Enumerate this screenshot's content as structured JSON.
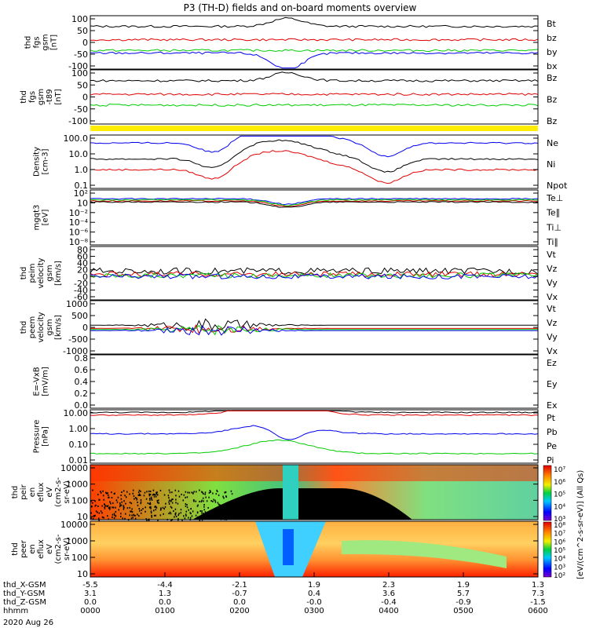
{
  "chart_data": {
    "type": "line",
    "title": "P3 (TH-D) fields and on-board moments overview",
    "date": "2020 Aug 26",
    "panels": [
      {
        "id": "fgs_gsm",
        "ylabel": [
          "thd",
          "fgs",
          "gsm",
          "[nT]"
        ],
        "yticks": [
          "100",
          "50",
          "0",
          "-50",
          "-100"
        ],
        "ylim": [
          -100,
          100
        ],
        "legend": [
          {
            "label": "Bt",
            "color": "#000000"
          },
          {
            "label": "bz",
            "color": "#e00000"
          },
          {
            "label": "by",
            "color": "#00cc00"
          },
          {
            "label": "bx",
            "color": "#0000ee"
          }
        ]
      },
      {
        "id": "fgs_gsm_t89",
        "ylabel": [
          "thd",
          "fgs",
          "gsm",
          "-t89",
          "[nT]"
        ],
        "yticks": [
          "100",
          "50",
          "0",
          "-50",
          "-100"
        ],
        "ylim": [
          -100,
          100
        ],
        "legend": [
          {
            "label": "Bz",
            "color": "#000000"
          },
          {
            "label": "Bz",
            "color": "#e00000"
          },
          {
            "label": "Bz",
            "color": "#00cc00"
          }
        ]
      },
      {
        "id": "density",
        "ylabel": [
          "Density",
          "[cm-3]"
        ],
        "yticks": [
          "100.0",
          "10.0",
          "1.0",
          "0.1"
        ],
        "scale": "log",
        "legend": [
          {
            "label": "Ne",
            "color": "#e00000"
          },
          {
            "label": "Ni",
            "color": "#000000"
          },
          {
            "label": "Npot",
            "color": "#0000ee"
          }
        ]
      },
      {
        "id": "temperature",
        "ylabel": [
          "mgqt3",
          "[eV]"
        ],
        "yticks": [
          "10²",
          "10",
          "10⁻²",
          "10⁻⁴",
          "10⁻⁶",
          "10⁻⁸"
        ],
        "scale": "log",
        "legend": [
          {
            "label": "Te⊥",
            "color": "#e00000"
          },
          {
            "label": "Te∥",
            "color": "#000000"
          },
          {
            "label": "Ti⊥",
            "color": "#0000ee"
          },
          {
            "label": "Ti∥",
            "color": "#00cc00"
          }
        ]
      },
      {
        "id": "peim_velocity",
        "ylabel": [
          "thd",
          "peim",
          "velocity",
          "gsm",
          "[km/s]"
        ],
        "yticks": [
          "80",
          "60",
          "40",
          "20",
          "0",
          "-20",
          "-40",
          "-60"
        ],
        "ylim": [
          -60,
          80
        ],
        "legend": [
          {
            "label": "Vt",
            "color": "#000000"
          },
          {
            "label": "Vz",
            "color": "#e00000"
          },
          {
            "label": "Vy",
            "color": "#00cc00"
          },
          {
            "label": "Vx",
            "color": "#0000ee"
          }
        ]
      },
      {
        "id": "peem_velocity",
        "ylabel": [
          "thd",
          "peem",
          "velocity",
          "gsm",
          "[km/s]"
        ],
        "yticks": [
          "1000",
          "500",
          "0",
          "-500",
          "-1000"
        ],
        "ylim": [
          -1000,
          1000
        ],
        "legend": [
          {
            "label": "Vt",
            "color": "#000000"
          },
          {
            "label": "Vz",
            "color": "#e00000"
          },
          {
            "label": "Vy",
            "color": "#00cc00"
          },
          {
            "label": "Vx",
            "color": "#0000ee"
          }
        ]
      },
      {
        "id": "efield",
        "ylabel": [
          "E=-VxB",
          "[mV/m]"
        ],
        "yticks": [
          "0.8",
          "0.6",
          "0.4",
          "0.2",
          "0.0"
        ],
        "ylim": [
          0,
          1
        ],
        "legend": [
          {
            "label": "Ez",
            "color": "#e00000"
          },
          {
            "label": "Ey",
            "color": "#00cc00"
          },
          {
            "label": "Ex",
            "color": "#0000ee"
          }
        ]
      },
      {
        "id": "pressure",
        "ylabel": [
          "Pressure",
          "[nPa]"
        ],
        "yticks": [
          "10.00",
          "1.00",
          "0.10",
          "0.01"
        ],
        "scale": "log",
        "legend": [
          {
            "label": "Pt",
            "color": "#000000"
          },
          {
            "label": "Pb",
            "color": "#e00000"
          },
          {
            "label": "Pe",
            "color": "#00cc00"
          },
          {
            "label": "Pi",
            "color": "#0000ee"
          }
        ]
      },
      {
        "id": "peir_eflux",
        "ylabel": [
          "thd",
          "peir",
          "en",
          "eflux",
          "eV",
          "(cm2-s-",
          "sr-eV)"
        ],
        "yticks": [
          "10000",
          "1000",
          "100",
          "10"
        ],
        "type": "spectrogram"
      },
      {
        "id": "peer_eflux",
        "ylabel": [
          "thd",
          "peer",
          "en",
          "eflux",
          "eV",
          "(cm2-s-",
          "sr-eV)"
        ],
        "yticks": [
          "10000",
          "1000",
          "100",
          "10"
        ],
        "type": "spectrogram"
      }
    ],
    "colorbar": {
      "ticks1": [
        "10⁷",
        "10⁶",
        "10⁵",
        "10⁴",
        "10³"
      ],
      "ticks2": [
        "10⁸",
        "10⁷",
        "10⁶",
        "10⁵",
        "10⁴",
        "10³",
        "10²"
      ],
      "label": "[eV/(cm^2-s-sr-eV)] (All Qs)"
    },
    "xaxis": {
      "hhmm": [
        "0000",
        "0100",
        "0200",
        "0300",
        "0400",
        "0500",
        "0600"
      ],
      "x_gsm": [
        "-5.5",
        "-4.4",
        "-2.1",
        "1.9",
        "2.3",
        "1.9",
        "1.3"
      ],
      "y_gsm": [
        "3.1",
        "1.3",
        "-0.7",
        "0.4",
        "3.6",
        "5.7",
        "7.3"
      ],
      "z_gsm": [
        "0.0",
        "0.0",
        "0.0",
        "-0.0",
        "-0.4",
        "-0.9",
        "-1.5"
      ],
      "row_labels": [
        "thd_X-GSM",
        "thd_Y-GSM",
        "thd_Z-GSM",
        "hhmm"
      ]
    }
  }
}
